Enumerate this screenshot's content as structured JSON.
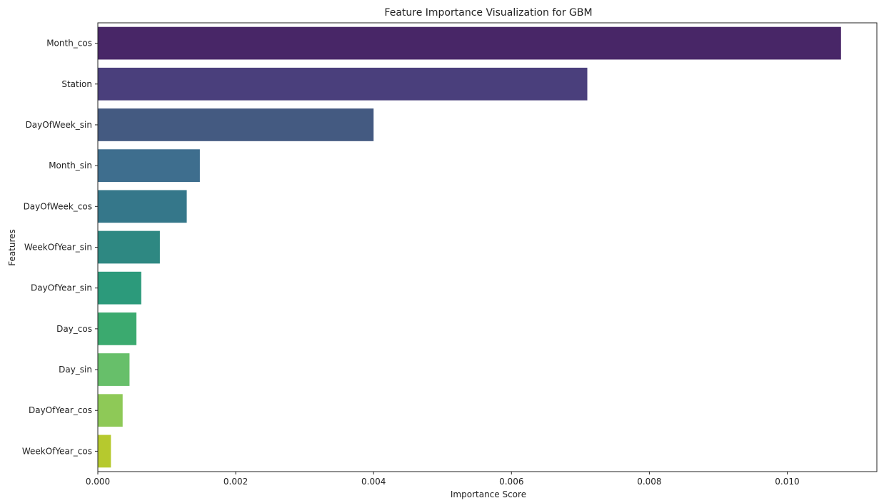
{
  "chart_data": {
    "type": "bar",
    "orientation": "horizontal",
    "title": "Feature Importance Visualization for GBM",
    "xlabel": "Importance Score",
    "ylabel": "Features",
    "categories": [
      "Month_cos",
      "Station",
      "DayOfWeek_sin",
      "Month_sin",
      "DayOfWeek_cos",
      "WeekOfYear_sin",
      "DayOfYear_sin",
      "Day_cos",
      "Day_sin",
      "DayOfYear_cos",
      "WeekOfYear_cos"
    ],
    "values": [
      0.01078,
      0.0071,
      0.004,
      0.00148,
      0.00129,
      0.0009,
      0.00063,
      0.00056,
      0.00046,
      0.00036,
      0.00019
    ],
    "colors": [
      "#482667",
      "#4a3f7c",
      "#445a81",
      "#3e6e8e",
      "#35778a",
      "#2e8882",
      "#2c9a7b",
      "#3baa6f",
      "#67bf6a",
      "#8ec957",
      "#b6c92e"
    ],
    "xlim": [
      0,
      0.0113
    ],
    "xticks": [
      0,
      0.002,
      0.004,
      0.006,
      0.008,
      0.01
    ],
    "xtick_labels": [
      "0.000",
      "0.002",
      "0.004",
      "0.006",
      "0.008",
      "0.010"
    ],
    "grid": false,
    "legend": null
  }
}
